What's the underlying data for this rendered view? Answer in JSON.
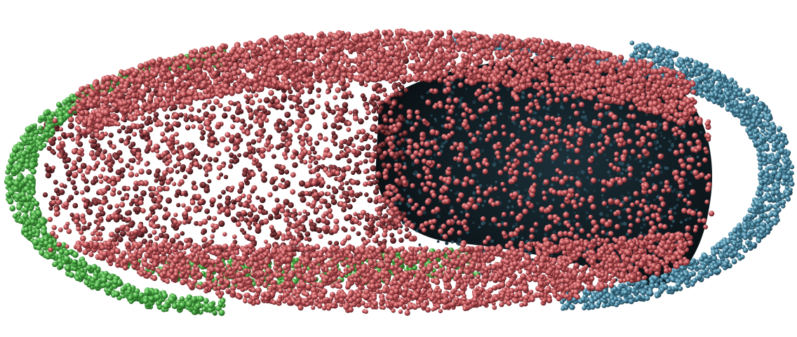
{
  "scene": {
    "background_color": "#ffffff",
    "subject": "particle-capsule-cutaway",
    "particle_groups": [
      {
        "name": "red",
        "color": "#c85a5e",
        "highlight": "#f2a3a3",
        "shade": "#5a1e22"
      },
      {
        "name": "green",
        "color": "#4fb24a",
        "highlight": "#a8e89a",
        "shade": "#1f5a1d"
      },
      {
        "name": "blue",
        "color": "#4d8ea8",
        "highlight": "#9fcfe0",
        "shade": "#1d3c4c"
      }
    ],
    "interior_color": "#0f1c22"
  }
}
